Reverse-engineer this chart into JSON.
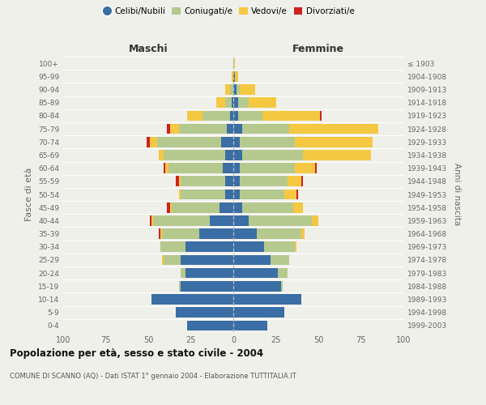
{
  "age_groups": [
    "100+",
    "95-99",
    "90-94",
    "85-89",
    "80-84",
    "75-79",
    "70-74",
    "65-69",
    "60-64",
    "55-59",
    "50-54",
    "45-49",
    "40-44",
    "35-39",
    "30-34",
    "25-29",
    "20-24",
    "15-19",
    "10-14",
    "5-9",
    "0-4"
  ],
  "birth_years": [
    "≤ 1903",
    "1904-1908",
    "1909-1913",
    "1914-1918",
    "1919-1923",
    "1924-1928",
    "1929-1933",
    "1934-1938",
    "1939-1943",
    "1944-1948",
    "1949-1953",
    "1954-1958",
    "1959-1963",
    "1964-1968",
    "1969-1973",
    "1974-1978",
    "1979-1983",
    "1984-1988",
    "1989-1993",
    "1994-1998",
    "1999-2003"
  ],
  "colors": {
    "celibi": "#3a6ea5",
    "coniugati": "#b5c98e",
    "vedovi": "#f5c842",
    "divorziati": "#cc2222"
  },
  "males": {
    "celibi": [
      0,
      0,
      0,
      1,
      2,
      4,
      7,
      5,
      6,
      5,
      5,
      8,
      14,
      20,
      28,
      31,
      28,
      31,
      48,
      34,
      27
    ],
    "coniugati": [
      0,
      0,
      2,
      4,
      16,
      28,
      38,
      36,
      32,
      26,
      26,
      28,
      33,
      22,
      15,
      10,
      3,
      1,
      0,
      0,
      0
    ],
    "vedovi": [
      0,
      1,
      3,
      5,
      9,
      5,
      4,
      3,
      2,
      1,
      1,
      1,
      1,
      1,
      0,
      1,
      0,
      0,
      0,
      0,
      0
    ],
    "divorziati": [
      0,
      0,
      0,
      0,
      0,
      2,
      2,
      0,
      1,
      2,
      0,
      2,
      1,
      1,
      0,
      0,
      0,
      0,
      0,
      0,
      0
    ]
  },
  "females": {
    "celibi": [
      0,
      1,
      2,
      3,
      3,
      5,
      4,
      5,
      4,
      4,
      4,
      5,
      9,
      14,
      18,
      22,
      26,
      28,
      40,
      30,
      20
    ],
    "coniugati": [
      0,
      0,
      2,
      6,
      14,
      28,
      32,
      36,
      32,
      28,
      26,
      30,
      37,
      26,
      18,
      11,
      6,
      1,
      0,
      0,
      0
    ],
    "vedovi": [
      1,
      2,
      9,
      16,
      34,
      52,
      46,
      40,
      12,
      8,
      7,
      6,
      4,
      2,
      1,
      0,
      0,
      0,
      0,
      0,
      0
    ],
    "divorziati": [
      0,
      0,
      0,
      0,
      1,
      0,
      0,
      0,
      1,
      1,
      1,
      0,
      0,
      0,
      0,
      0,
      0,
      0,
      0,
      0,
      0
    ]
  },
  "title": "Popolazione per età, sesso e stato civile - 2004",
  "subtitle": "COMUNE DI SCANNO (AQ) - Dati ISTAT 1° gennaio 2004 - Elaborazione TUTTITALIA.IT",
  "xlabel_left": "Maschi",
  "xlabel_right": "Femmine",
  "ylabel_left": "Fasce di età",
  "ylabel_right": "Anni di nascita",
  "xlim": 100,
  "bg_color": "#f0f0eb",
  "legend_labels": [
    "Celibi/Nubili",
    "Coniugati/e",
    "Vedovi/e",
    "Divorziati/e"
  ]
}
